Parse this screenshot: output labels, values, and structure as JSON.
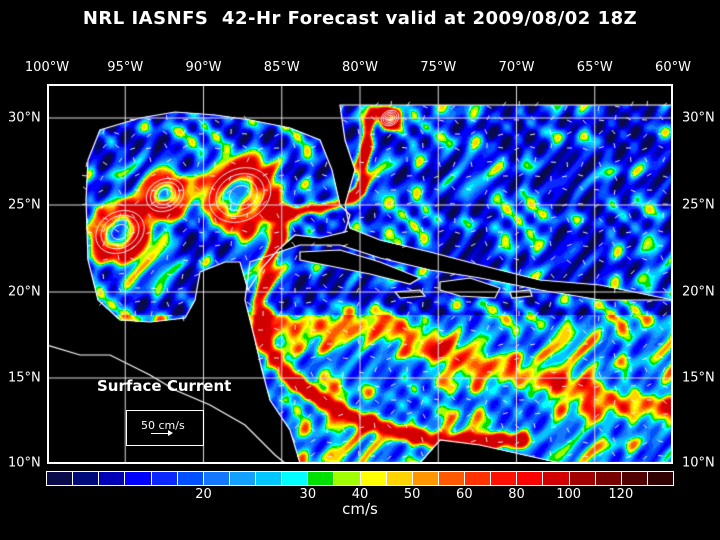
{
  "title": "NRL IASNFS  42-Hr Forecast valid at 2009/08/02 18Z",
  "lon_labels": [
    "100°W",
    "95°W",
    "90°W",
    "85°W",
    "80°W",
    "75°W",
    "70°W",
    "65°W",
    "60°W"
  ],
  "lat_labels": [
    "30°N",
    "25°N",
    "20°N",
    "15°N",
    "10°N"
  ],
  "legend": {
    "title": "Surface Current",
    "scale_label": "50 cm/s"
  },
  "colorbar": {
    "unit": "cm/s",
    "tick_labels": [
      "20",
      "30",
      "40",
      "50",
      "60",
      "80",
      "100",
      "120"
    ],
    "colors": [
      "#0a0a4a",
      "#000a78",
      "#0000b4",
      "#0000ff",
      "#0a28ff",
      "#0050ff",
      "#1478ff",
      "#14a0ff",
      "#00c8ff",
      "#00ffff",
      "#00e000",
      "#a0ff00",
      "#ffff00",
      "#ffd200",
      "#ff9600",
      "#ff5a00",
      "#ff3200",
      "#ff1000",
      "#ff0000",
      "#d20000",
      "#a00000",
      "#780000",
      "#500000",
      "#300000"
    ]
  }
}
